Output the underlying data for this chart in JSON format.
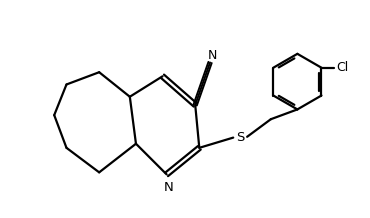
{
  "background_color": "#ffffff",
  "line_color": "#000000",
  "line_width": 1.6,
  "figure_size": [
    3.7,
    2.18
  ],
  "dpi": 100,
  "xlim": [
    -2.8,
    4.8
  ],
  "ylim": [
    -2.5,
    2.8
  ]
}
